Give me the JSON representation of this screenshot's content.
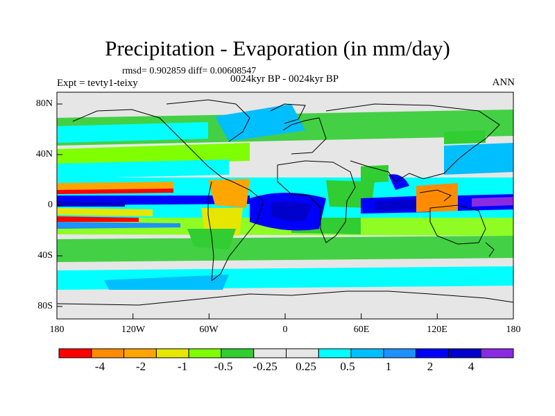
{
  "title": "Precipitation - Evaporation (in mm/day)",
  "stats_text": "rmsd= 0.902859  diff= 0.00608547",
  "experiment": "Expt = tevty1-teixy",
  "period": "0024kyr BP - 0024kyr BP",
  "season": "ANN",
  "latitude_labels": [
    "80N",
    "40N",
    "0",
    "40S",
    "80S"
  ],
  "longitude_labels": [
    "180",
    "120W",
    "60W",
    "0",
    "60E",
    "120E",
    "180"
  ],
  "colorbar": {
    "colors": [
      "#ff0000",
      "#ff8c00",
      "#ffa500",
      "#e6e600",
      "#7fff00",
      "#32cd32",
      "#e6e6e6",
      "#e6e6e6",
      "#00ffff",
      "#00bfff",
      "#1e90ff",
      "#0000ff",
      "#0000cd",
      "#8a2be2"
    ],
    "labels": [
      "-4",
      "-2",
      "-1",
      "-0.5",
      "-0.25",
      "0.25",
      "0.5",
      "1",
      "2",
      "4"
    ]
  }
}
